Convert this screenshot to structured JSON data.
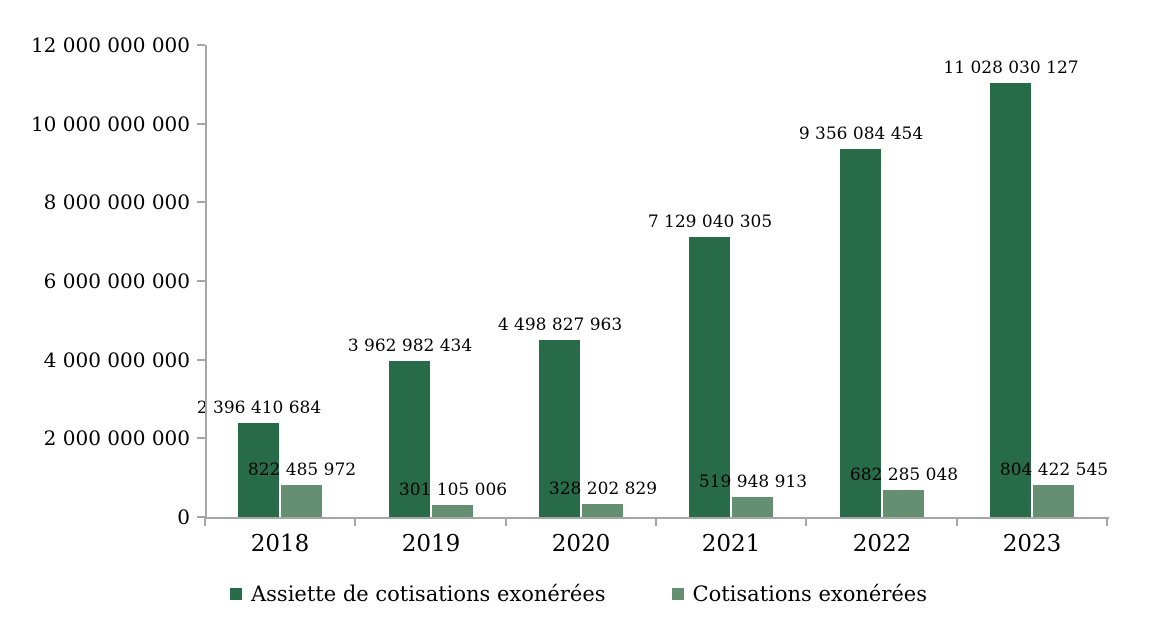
{
  "chart_data": {
    "type": "bar",
    "title": "",
    "xlabel": "",
    "ylabel": "",
    "categories": [
      "2018",
      "2019",
      "2020",
      "2021",
      "2022",
      "2023"
    ],
    "series": [
      {
        "name": "Assiette de cotisations exonérées",
        "color": "#276B49",
        "values": [
          2396410684,
          3962982434,
          4498827963,
          7129040305,
          9356084454,
          11028030127
        ],
        "labels": [
          "2 396 410 684",
          "3 962 982 434",
          "4 498 827 963",
          "7 129 040 305",
          "9 356 084 454",
          "11 028 030 127"
        ]
      },
      {
        "name": "Cotisations exonérées",
        "color": "#648F70",
        "values": [
          822485972,
          301105006,
          328202829,
          519948913,
          682285048,
          804422545
        ],
        "labels": [
          "822 485 972",
          "301 105 006",
          "328 202 829",
          "519 948 913",
          "682 285 048",
          "804 422 545"
        ]
      }
    ],
    "ylim": [
      0,
      12000000000
    ],
    "yticks": [
      {
        "value": 0,
        "label": "0"
      },
      {
        "value": 2000000000,
        "label": "2 000 000 000"
      },
      {
        "value": 4000000000,
        "label": "4 000 000 000"
      },
      {
        "value": 6000000000,
        "label": "6 000 000 000"
      },
      {
        "value": 8000000000,
        "label": "8 000 000 000"
      },
      {
        "value": 10000000000,
        "label": "10 000 000 000"
      },
      {
        "value": 12000000000,
        "label": "12 000 000 000"
      }
    ],
    "grid": false,
    "legend_position": "bottom",
    "colors": {
      "axis": "#A6A6A6",
      "text": "#000000",
      "background": "#FFFFFF"
    }
  }
}
